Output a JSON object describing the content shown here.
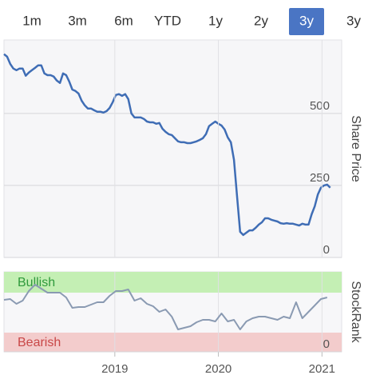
{
  "tabs": {
    "labels": [
      "1m",
      "3m",
      "6m",
      "YTD",
      "1y",
      "2y",
      "3y",
      "3y"
    ],
    "selected": 6,
    "selected_color": "#4a75c4"
  },
  "chart_data": [
    {
      "type": "line",
      "y_label": "Share Price",
      "color": "#3f6db5",
      "xlim": [
        2017.93,
        2021.19
      ],
      "ylim": [
        0,
        755
      ],
      "yticks": [
        0,
        250,
        500
      ],
      "grid": true,
      "x": [
        2017.93,
        2017.96,
        2017.99,
        2018.02,
        2018.05,
        2018.08,
        2018.11,
        2018.14,
        2018.17,
        2018.2,
        2018.23,
        2018.26,
        2018.29,
        2018.32,
        2018.35,
        2018.38,
        2018.41,
        2018.44,
        2018.47,
        2018.5,
        2018.53,
        2018.56,
        2018.59,
        2018.62,
        2018.65,
        2018.68,
        2018.71,
        2018.74,
        2018.77,
        2018.8,
        2018.83,
        2018.86,
        2018.89,
        2018.92,
        2018.95,
        2018.98,
        2019.01,
        2019.04,
        2019.07,
        2019.1,
        2019.13,
        2019.16,
        2019.19,
        2019.22,
        2019.25,
        2019.28,
        2019.31,
        2019.34,
        2019.37,
        2019.4,
        2019.43,
        2019.46,
        2019.49,
        2019.52,
        2019.55,
        2019.58,
        2019.61,
        2019.64,
        2019.67,
        2019.7,
        2019.73,
        2019.76,
        2019.79,
        2019.82,
        2019.85,
        2019.88,
        2019.91,
        2019.94,
        2019.97,
        2020,
        2020.03,
        2020.06,
        2020.09,
        2020.12,
        2020.15,
        2020.18,
        2020.21,
        2020.24,
        2020.27,
        2020.3,
        2020.33,
        2020.36,
        2020.39,
        2020.42,
        2020.45,
        2020.48,
        2020.51,
        2020.54,
        2020.57,
        2020.6,
        2020.63,
        2020.66,
        2020.69,
        2020.72,
        2020.75,
        2020.78,
        2020.81,
        2020.84,
        2020.87,
        2020.9,
        2020.93,
        2020.96,
        2020.99,
        2021.02,
        2021.05,
        2021.08
      ],
      "values": [
        706,
        697,
        672,
        656,
        650,
        656,
        656,
        631,
        642,
        650,
        658,
        667,
        667,
        639,
        633,
        633,
        628,
        614,
        606,
        639,
        633,
        611,
        583,
        578,
        569,
        544,
        528,
        517,
        517,
        511,
        506,
        506,
        503,
        508,
        519,
        539,
        564,
        567,
        561,
        567,
        550,
        500,
        486,
        486,
        486,
        481,
        472,
        469,
        469,
        464,
        467,
        447,
        436,
        428,
        425,
        414,
        403,
        400,
        400,
        397,
        397,
        400,
        403,
        408,
        414,
        428,
        456,
        464,
        472,
        464,
        458,
        444,
        417,
        400,
        339,
        214,
        89,
        78,
        86,
        94,
        94,
        103,
        114,
        122,
        136,
        136,
        131,
        128,
        125,
        119,
        117,
        119,
        117,
        117,
        114,
        111,
        117,
        114,
        114,
        150,
        178,
        219,
        242,
        250,
        253,
        242
      ]
    },
    {
      "type": "line",
      "y_label": "StockRank",
      "color": "#8a9ab2",
      "xlim": [
        2017.93,
        2021.19
      ],
      "ylim": [
        0,
        100
      ],
      "yticks": [
        0
      ],
      "xticks": [
        2019,
        2020,
        2021
      ],
      "grid": true,
      "bands": [
        {
          "label": "Bullish",
          "from": 74,
          "to": 100,
          "color": "#c4efb4",
          "text_color": "#2f9a3c"
        },
        {
          "label": "Bearish",
          "from": 0,
          "to": 24,
          "color": "#f3cccc",
          "text_color": "#c94848"
        }
      ],
      "x": [
        2017.93,
        2017.99,
        2018.05,
        2018.11,
        2018.17,
        2018.23,
        2018.29,
        2018.35,
        2018.41,
        2018.47,
        2018.53,
        2018.59,
        2018.65,
        2018.71,
        2018.77,
        2018.83,
        2018.89,
        2018.95,
        2019.01,
        2019.07,
        2019.13,
        2019.19,
        2019.25,
        2019.31,
        2019.37,
        2019.43,
        2019.49,
        2019.55,
        2019.61,
        2019.67,
        2019.73,
        2019.79,
        2019.85,
        2019.91,
        2019.97,
        2020.03,
        2020.09,
        2020.15,
        2020.21,
        2020.27,
        2020.33,
        2020.39,
        2020.45,
        2020.51,
        2020.57,
        2020.63,
        2020.69,
        2020.75,
        2020.81,
        2020.87,
        2020.93,
        2020.99,
        2021.05
      ],
      "values": [
        65,
        66,
        60,
        64,
        76,
        84,
        79,
        74,
        74,
        74,
        68,
        55,
        56,
        56,
        59,
        62,
        62,
        70,
        76,
        76,
        78,
        64,
        67,
        60,
        57,
        50,
        53,
        44,
        28,
        30,
        32,
        37,
        40,
        40,
        38,
        48,
        38,
        40,
        28,
        38,
        42,
        44,
        44,
        42,
        40,
        44,
        42,
        62,
        42,
        50,
        58,
        66,
        68
      ]
    }
  ]
}
